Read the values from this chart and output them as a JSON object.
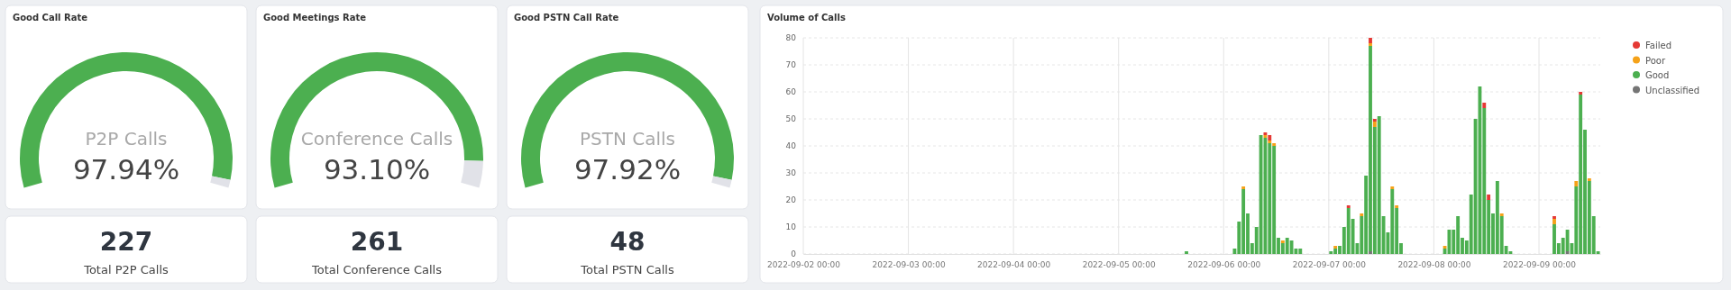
{
  "chart_data": [
    {
      "type": "donut",
      "title": "Good Call Rate",
      "categories": [
        "P2P Calls",
        null
      ],
      "values": [
        97.94,
        2.06
      ],
      "colors": [
        "#4caf50",
        "#e1e2e8"
      ],
      "value_labels": [
        "97.94%",
        null
      ]
    },
    {
      "type": "other",
      "categories": [
        "Total P2P Calls"
      ],
      "values": [
        227
      ],
      "data_labels": true
    },
    {
      "type": "donut",
      "title": "Good Meetings Rate",
      "categories": [
        "Conference Calls",
        null
      ],
      "values": [
        93.1,
        6.9
      ],
      "colors": [
        "#4caf50",
        "#e1e2e8"
      ],
      "value_labels": [
        "93.10%",
        null
      ]
    },
    {
      "type": "other",
      "categories": [
        "Total Conference Calls"
      ],
      "values": [
        261
      ],
      "data_labels": true
    },
    {
      "type": "donut",
      "title": "Good PSTN Call Rate",
      "categories": [
        "PSTN Calls",
        null
      ],
      "values": [
        97.92,
        2.08
      ],
      "colors": [
        "#4caf50",
        "#e1e2e8"
      ],
      "value_labels": [
        "97.92%",
        null
      ]
    },
    {
      "type": "other",
      "categories": [
        "Total PSTN Calls"
      ],
      "values": [
        48
      ],
      "data_labels": true
    },
    {
      "type": "bar",
      "title": "Volume of Calls",
      "stacked": true,
      "grid": true,
      "legend": "top right",
      "x": [
        "2022-09-05T15:00",
        "2022-09-06T02:00",
        "2022-09-06T03:00",
        "2022-09-06T04:00",
        "2022-09-06T05:00",
        "2022-09-06T06:00",
        "2022-09-06T07:00",
        "2022-09-06T08:00",
        "2022-09-06T09:00",
        "2022-09-06T10:00",
        "2022-09-06T11:00",
        "2022-09-06T12:00",
        "2022-09-06T13:00",
        "2022-09-06T14:00",
        "2022-09-06T15:00",
        "2022-09-06T16:00",
        "2022-09-06T17:00",
        "2022-09-07T00:00",
        "2022-09-07T01:00",
        "2022-09-07T02:00",
        "2022-09-07T03:00",
        "2022-09-07T04:00",
        "2022-09-07T05:00",
        "2022-09-07T06:00",
        "2022-09-07T07:00",
        "2022-09-07T08:00",
        "2022-09-07T09:00",
        "2022-09-07T10:00",
        "2022-09-07T11:00",
        "2022-09-07T12:00",
        "2022-09-07T13:00",
        "2022-09-07T14:00",
        "2022-09-07T15:00",
        "2022-09-07T16:00",
        "2022-09-08T02:00",
        "2022-09-08T03:00",
        "2022-09-08T04:00",
        "2022-09-08T05:00",
        "2022-09-08T06:00",
        "2022-09-08T07:00",
        "2022-09-08T08:00",
        "2022-09-08T09:00",
        "2022-09-08T10:00",
        "2022-09-08T11:00",
        "2022-09-08T12:00",
        "2022-09-08T13:00",
        "2022-09-08T14:00",
        "2022-09-08T15:00",
        "2022-09-08T16:00",
        "2022-09-08T17:00",
        "2022-09-09T03:00",
        "2022-09-09T04:00",
        "2022-09-09T05:00",
        "2022-09-09T06:00",
        "2022-09-09T07:00",
        "2022-09-09T08:00",
        "2022-09-09T09:00",
        "2022-09-09T10:00",
        "2022-09-09T11:00",
        "2022-09-09T12:00",
        "2022-09-09T13:00"
      ],
      "series": [
        {
          "name": "Unclassified",
          "color": "#757575",
          "values": [
            0,
            0,
            0,
            0,
            0,
            0,
            0,
            0,
            0,
            0,
            0,
            0,
            0,
            0,
            0,
            0,
            0,
            0,
            0,
            0,
            0,
            0,
            0,
            0,
            0,
            0,
            1,
            0,
            0,
            0,
            0,
            0,
            0,
            0,
            0,
            0,
            0,
            0,
            0,
            0,
            0,
            0,
            0,
            0,
            0,
            0,
            0,
            0,
            0,
            0,
            0,
            0,
            0,
            1,
            0,
            0,
            0,
            0,
            0,
            0,
            0
          ]
        },
        {
          "name": "Good",
          "color": "#4caf50",
          "values": [
            1,
            2,
            12,
            24,
            15,
            4,
            10,
            44,
            43,
            41,
            40,
            6,
            4,
            6,
            5,
            2,
            2,
            1,
            2,
            3,
            10,
            17,
            13,
            4,
            14,
            29,
            76,
            47,
            51,
            14,
            8,
            24,
            17,
            4,
            2,
            9,
            9,
            14,
            6,
            5,
            22,
            50,
            62,
            54,
            20,
            15,
            27,
            14,
            3,
            1,
            11,
            4,
            6,
            8,
            4,
            25,
            59,
            46,
            27,
            14,
            1
          ]
        },
        {
          "name": "Poor",
          "color": "#f5a219",
          "values": [
            0,
            0,
            0,
            1,
            0,
            0,
            0,
            0,
            1,
            1,
            1,
            0,
            1,
            0,
            0,
            0,
            0,
            0,
            1,
            0,
            0,
            0,
            0,
            0,
            1,
            0,
            1,
            2,
            0,
            0,
            0,
            1,
            1,
            0,
            1,
            0,
            0,
            0,
            0,
            0,
            0,
            0,
            0,
            0,
            0,
            0,
            0,
            1,
            0,
            0,
            2,
            0,
            0,
            0,
            0,
            2,
            0,
            0,
            1,
            0,
            0
          ]
        },
        {
          "name": "Failed",
          "color": "#e53935",
          "values": [
            0,
            0,
            0,
            0,
            0,
            0,
            0,
            0,
            1,
            2,
            0,
            0,
            0,
            0,
            0,
            0,
            0,
            0,
            0,
            0,
            0,
            1,
            0,
            0,
            0,
            0,
            2,
            1,
            0,
            0,
            0,
            0,
            0,
            0,
            0,
            0,
            0,
            0,
            0,
            0,
            0,
            0,
            0,
            2,
            2,
            0,
            0,
            0,
            0,
            0,
            1,
            0,
            0,
            0,
            0,
            0,
            1,
            0,
            0,
            0,
            0
          ]
        }
      ],
      "xlim": [
        "2022-09-02T00:00",
        "2022-09-09T14:00"
      ],
      "xticks": [
        {
          "value": "2022-09-02T00:00",
          "label": "2022-09-02 00:00"
        },
        {
          "value": "2022-09-03T00:00",
          "label": "2022-09-03 00:00"
        },
        {
          "value": "2022-09-04T00:00",
          "label": "2022-09-04 00:00"
        },
        {
          "value": "2022-09-05T00:00",
          "label": "2022-09-05 00:00"
        },
        {
          "value": "2022-09-06T00:00",
          "label": "2022-09-06 00:00"
        },
        {
          "value": "2022-09-07T00:00",
          "label": "2022-09-07 00:00"
        },
        {
          "value": "2022-09-08T00:00",
          "label": "2022-09-08 00:00"
        },
        {
          "value": "2022-09-09T00:00",
          "label": "2022-09-09 00:00"
        }
      ],
      "ylim": [
        0,
        80
      ],
      "yticks": [
        0,
        10,
        20,
        30,
        40,
        50,
        60,
        70,
        80
      ]
    }
  ]
}
